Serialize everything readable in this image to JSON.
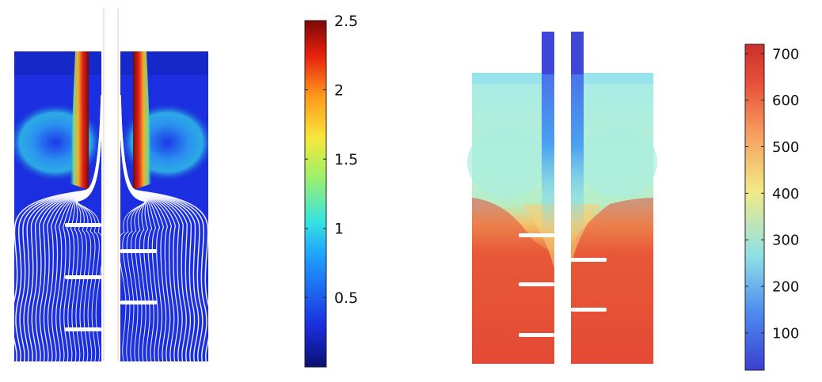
{
  "chart_data": [
    {
      "type": "heatmap",
      "title": "",
      "colormap": "jet",
      "range": [
        0,
        2.5
      ],
      "colorbar_ticks": [
        "0.5",
        "1",
        "1.5",
        "2",
        "2.5"
      ],
      "tick_values": [
        0.5,
        1,
        1.5,
        2,
        2.5
      ],
      "overlay": "white streamlines",
      "baffles_left": 3,
      "baffles_right": 2
    },
    {
      "type": "heatmap",
      "title": "",
      "colormap": "jet",
      "range": [
        20,
        720
      ],
      "colorbar_ticks": [
        "100",
        "200",
        "300",
        "400",
        "500",
        "600",
        "700"
      ],
      "tick_values": [
        100,
        200,
        300,
        400,
        500,
        600,
        700
      ],
      "baffles_left": 3,
      "baffles_right": 2
    }
  ]
}
